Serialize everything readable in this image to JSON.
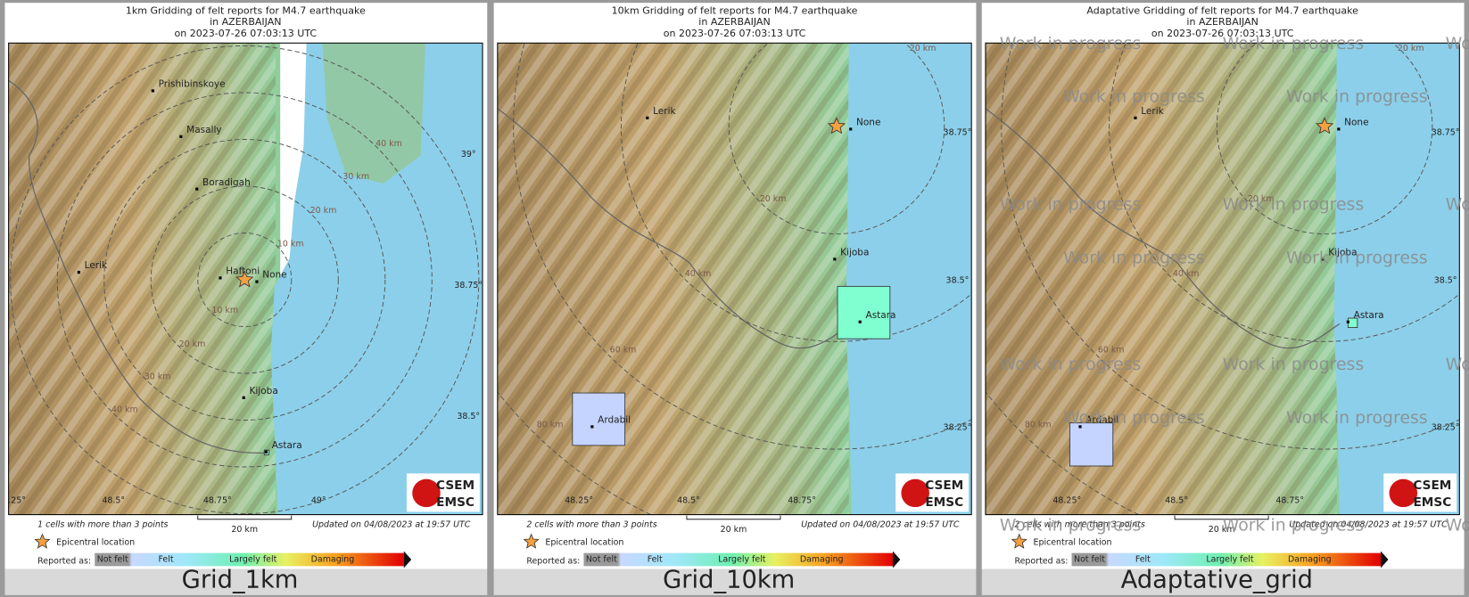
{
  "panels": [
    {
      "title": [
        "1km Gridding of felt reports for M4.7 earthquake",
        "in AZERBAIJAN",
        "on  2023-07-26 07:03:13 UTC"
      ],
      "places": [
        "Prishibinskoye",
        "Masally",
        "Boradigah",
        "Lerik",
        "Haftoni",
        "None",
        "Kijoba",
        "Astara"
      ],
      "ring_labels": [
        "10 km",
        "20 km",
        "30 km",
        "40 km"
      ],
      "lon_labels": [
        ".25°",
        "48.5°",
        "48.75°",
        "49°"
      ],
      "lat_labels": [
        "39°",
        "38.75°",
        "38.5°"
      ],
      "cells_note": "1 cells with more than 3 points",
      "updated": "Updated on 04/08/2023 at 19:57 UTC",
      "scale": "20 km",
      "caption": "Grid_1km"
    },
    {
      "title": [
        "10km Gridding of felt reports for M4.7 earthquake",
        "in AZERBAIJAN",
        "on  2023-07-26 07:03:13 UTC"
      ],
      "places": [
        "Lerik",
        "None",
        "Kijoba",
        "Astara",
        "Ardabil"
      ],
      "ring_labels": [
        "20 km",
        "40 km",
        "60 km",
        "80 km"
      ],
      "lon_labels": [
        "48.25°",
        "48.5°",
        "48.75°"
      ],
      "lat_labels": [
        "38.75°",
        "38.5°",
        "38.25°"
      ],
      "cells_note": "2 cells with more than 3 points",
      "updated": "Updated on 04/08/2023 at 19:57 UTC",
      "scale": "20 km",
      "caption": "Grid_10km"
    },
    {
      "title": [
        "Adaptative Gridding of felt reports for M4.7 earthquake",
        "in AZERBAIJAN",
        "on  2023-07-26 07:03:13 UTC"
      ],
      "places": [
        "Lerik",
        "None",
        "Kijoba",
        "Astara",
        "Ardabil"
      ],
      "ring_labels": [
        "20 km",
        "40 km",
        "60 km",
        "80 km"
      ],
      "lon_labels": [
        "48.25°",
        "48.5°",
        "48.75°"
      ],
      "lat_labels": [
        "38.75°",
        "38.5°",
        "38.25°"
      ],
      "cells_note": "2 cells with more than 3 points",
      "updated": "Updated on 04/08/2023 at 19:57 UTC",
      "scale": "20 km",
      "caption": "Adaptative_grid"
    }
  ],
  "legend": {
    "epicenter": "Epicentral location",
    "reported_as": "Reported as:",
    "levels": [
      "Not felt",
      "Felt",
      "Largely felt",
      "Damaging"
    ]
  },
  "logo": [
    "CSEM",
    "EMSC"
  ],
  "watermark": "Work in progress"
}
